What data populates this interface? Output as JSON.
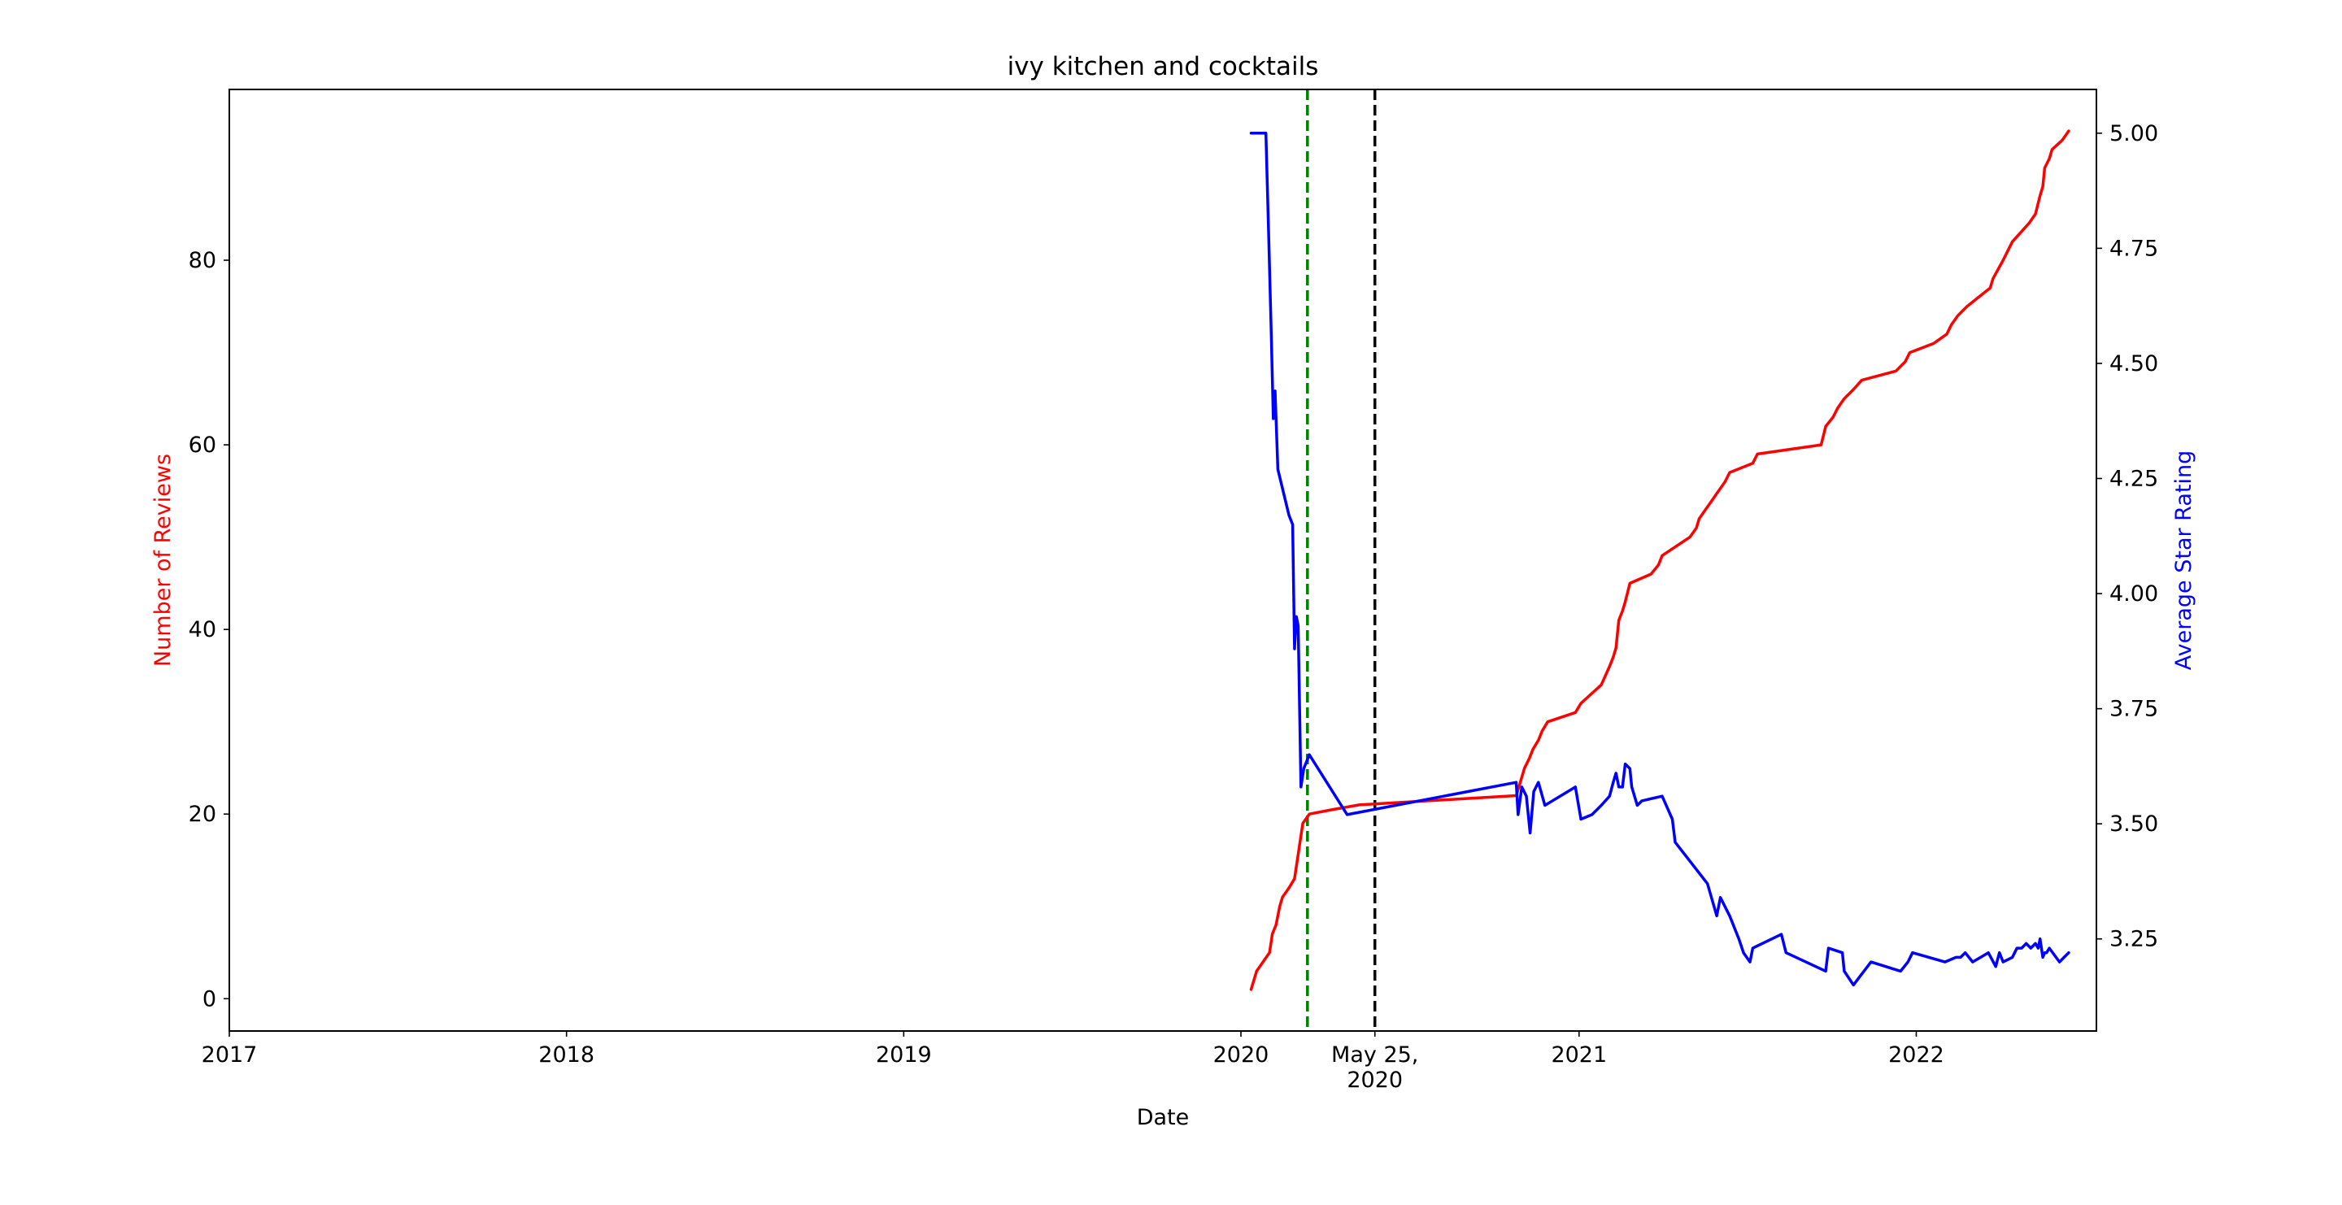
{
  "chart_data": {
    "type": "line",
    "title": "ivy kitchen and cocktails",
    "xlabel": "Date",
    "ylabel_left": "Number of Reviews",
    "ylabel_right": "Average Star Rating",
    "xlim": [
      "2017-01-01",
      "2022-07-15"
    ],
    "ylim_left": [
      -3.5,
      98.5
    ],
    "ylim_right": [
      3.05,
      5.095
    ],
    "x_ticks": [
      {
        "date": "2017-01-01",
        "label": "2017"
      },
      {
        "date": "2018-01-01",
        "label": "2018"
      },
      {
        "date": "2019-01-01",
        "label": "2019"
      },
      {
        "date": "2020-01-01",
        "label": "2020"
      },
      {
        "date": "2020-05-25",
        "label": "May 25,\n2020"
      },
      {
        "date": "2021-01-01",
        "label": "2021"
      },
      {
        "date": "2022-01-01",
        "label": "2022"
      }
    ],
    "y_ticks_left": [
      0,
      20,
      40,
      60,
      80
    ],
    "y_ticks_right": [
      "3.25",
      "3.50",
      "3.75",
      "4.00",
      "4.25",
      "4.50",
      "4.75",
      "5.00"
    ],
    "vlines": [
      {
        "date": "2020-03-13",
        "color": "#008000",
        "style": "dashed"
      },
      {
        "date": "2020-05-25",
        "color": "#000000",
        "style": "dashed"
      }
    ],
    "series": [
      {
        "axis": "left",
        "color": "#ff0000",
        "points": [
          [
            "2020-01-12",
            1
          ],
          [
            "2020-01-15",
            2
          ],
          [
            "2020-01-18",
            3
          ],
          [
            "2020-01-25",
            4
          ],
          [
            "2020-02-01",
            5
          ],
          [
            "2020-02-04",
            7
          ],
          [
            "2020-02-08",
            8
          ],
          [
            "2020-02-12",
            10
          ],
          [
            "2020-02-15",
            11
          ],
          [
            "2020-02-22",
            12
          ],
          [
            "2020-02-28",
            13
          ],
          [
            "2020-03-02",
            15
          ],
          [
            "2020-03-05",
            17
          ],
          [
            "2020-03-08",
            19
          ],
          [
            "2020-03-15",
            20
          ],
          [
            "2020-04-10",
            20.5
          ],
          [
            "2020-05-08",
            21
          ],
          [
            "2020-10-25",
            22
          ],
          [
            "2020-10-28",
            23
          ],
          [
            "2020-11-03",
            25
          ],
          [
            "2020-11-08",
            26
          ],
          [
            "2020-11-12",
            27
          ],
          [
            "2020-11-18",
            28
          ],
          [
            "2020-11-22",
            29
          ],
          [
            "2020-11-28",
            30
          ],
          [
            "2020-12-28",
            31
          ],
          [
            "2021-01-03",
            32
          ],
          [
            "2021-01-25",
            34
          ],
          [
            "2021-02-03",
            36
          ],
          [
            "2021-02-07",
            37
          ],
          [
            "2021-02-10",
            38
          ],
          [
            "2021-02-13",
            41
          ],
          [
            "2021-02-17",
            42
          ],
          [
            "2021-02-20",
            43
          ],
          [
            "2021-02-25",
            45
          ],
          [
            "2021-03-20",
            46
          ],
          [
            "2021-03-28",
            47
          ],
          [
            "2021-04-01",
            48
          ],
          [
            "2021-05-01",
            50
          ],
          [
            "2021-05-08",
            51
          ],
          [
            "2021-05-11",
            52
          ],
          [
            "2021-05-18",
            53
          ],
          [
            "2021-05-25",
            54
          ],
          [
            "2021-06-01",
            55
          ],
          [
            "2021-06-08",
            56
          ],
          [
            "2021-06-13",
            57
          ],
          [
            "2021-07-08",
            58
          ],
          [
            "2021-07-13",
            59
          ],
          [
            "2021-09-20",
            60
          ],
          [
            "2021-09-25",
            62
          ],
          [
            "2021-10-03",
            63
          ],
          [
            "2021-10-08",
            64
          ],
          [
            "2021-10-15",
            65
          ],
          [
            "2021-10-25",
            66
          ],
          [
            "2021-11-03",
            67
          ],
          [
            "2021-12-10",
            68
          ],
          [
            "2021-12-20",
            69
          ],
          [
            "2021-12-25",
            70
          ],
          [
            "2022-01-20",
            71
          ],
          [
            "2022-02-03",
            72
          ],
          [
            "2022-02-08",
            73
          ],
          [
            "2022-02-15",
            74
          ],
          [
            "2022-02-25",
            75
          ],
          [
            "2022-03-22",
            77
          ],
          [
            "2022-03-25",
            78
          ],
          [
            "2022-04-05",
            80
          ],
          [
            "2022-04-10",
            81
          ],
          [
            "2022-04-15",
            82
          ],
          [
            "2022-05-03",
            84
          ],
          [
            "2022-05-10",
            85
          ],
          [
            "2022-05-15",
            87
          ],
          [
            "2022-05-18",
            88
          ],
          [
            "2022-05-20",
            90
          ],
          [
            "2022-05-25",
            91
          ],
          [
            "2022-05-28",
            92
          ],
          [
            "2022-06-08",
            93
          ],
          [
            "2022-06-15",
            94
          ]
        ]
      },
      {
        "axis": "right",
        "color": "#0000ff",
        "points": [
          [
            "2020-01-12",
            5.0
          ],
          [
            "2020-01-28",
            5.0
          ],
          [
            "2020-01-31",
            4.78
          ],
          [
            "2020-02-03",
            4.55
          ],
          [
            "2020-02-05",
            4.38
          ],
          [
            "2020-02-07",
            4.44
          ],
          [
            "2020-02-10",
            4.27
          ],
          [
            "2020-02-22",
            4.17
          ],
          [
            "2020-02-26",
            4.15
          ],
          [
            "2020-02-28",
            3.88
          ],
          [
            "2020-03-01",
            3.95
          ],
          [
            "2020-03-03",
            3.93
          ],
          [
            "2020-03-06",
            3.58
          ],
          [
            "2020-03-09",
            3.62
          ],
          [
            "2020-03-15",
            3.65
          ],
          [
            "2020-04-25",
            3.52
          ],
          [
            "2020-10-25",
            3.59
          ],
          [
            "2020-10-27",
            3.52
          ],
          [
            "2020-10-31",
            3.58
          ],
          [
            "2020-11-05",
            3.56
          ],
          [
            "2020-11-09",
            3.48
          ],
          [
            "2020-11-13",
            3.57
          ],
          [
            "2020-11-18",
            3.59
          ],
          [
            "2020-11-25",
            3.54
          ],
          [
            "2020-12-28",
            3.58
          ],
          [
            "2021-01-03",
            3.51
          ],
          [
            "2021-01-15",
            3.52
          ],
          [
            "2021-01-25",
            3.54
          ],
          [
            "2021-02-03",
            3.56
          ],
          [
            "2021-02-07",
            3.59
          ],
          [
            "2021-02-10",
            3.61
          ],
          [
            "2021-02-13",
            3.58
          ],
          [
            "2021-02-17",
            3.58
          ],
          [
            "2021-02-20",
            3.63
          ],
          [
            "2021-02-25",
            3.62
          ],
          [
            "2021-02-27",
            3.58
          ],
          [
            "2021-03-05",
            3.54
          ],
          [
            "2021-03-10",
            3.55
          ],
          [
            "2021-04-01",
            3.56
          ],
          [
            "2021-04-12",
            3.51
          ],
          [
            "2021-04-15",
            3.46
          ],
          [
            "2021-05-20",
            3.37
          ],
          [
            "2021-05-30",
            3.3
          ],
          [
            "2021-06-03",
            3.34
          ],
          [
            "2021-06-13",
            3.3
          ],
          [
            "2021-06-23",
            3.25
          ],
          [
            "2021-06-28",
            3.22
          ],
          [
            "2021-07-05",
            3.2
          ],
          [
            "2021-07-08",
            3.23
          ],
          [
            "2021-08-08",
            3.26
          ],
          [
            "2021-08-13",
            3.22
          ],
          [
            "2021-09-25",
            3.18
          ],
          [
            "2021-09-28",
            3.23
          ],
          [
            "2021-10-13",
            3.22
          ],
          [
            "2021-10-15",
            3.18
          ],
          [
            "2021-10-25",
            3.15
          ],
          [
            "2021-11-13",
            3.2
          ],
          [
            "2021-12-15",
            3.18
          ],
          [
            "2021-12-23",
            3.2
          ],
          [
            "2021-12-28",
            3.22
          ],
          [
            "2022-02-01",
            3.2
          ],
          [
            "2022-02-13",
            3.21
          ],
          [
            "2022-02-18",
            3.21
          ],
          [
            "2022-02-23",
            3.22
          ],
          [
            "2022-03-03",
            3.2
          ],
          [
            "2022-03-20",
            3.22
          ],
          [
            "2022-03-28",
            3.19
          ],
          [
            "2022-04-01",
            3.22
          ],
          [
            "2022-04-05",
            3.2
          ],
          [
            "2022-04-15",
            3.21
          ],
          [
            "2022-04-20",
            3.23
          ],
          [
            "2022-04-25",
            3.23
          ],
          [
            "2022-04-30",
            3.24
          ],
          [
            "2022-05-05",
            3.23
          ],
          [
            "2022-05-10",
            3.24
          ],
          [
            "2022-05-13",
            3.23
          ],
          [
            "2022-05-15",
            3.25
          ],
          [
            "2022-05-18",
            3.21
          ],
          [
            "2022-05-20",
            3.22
          ],
          [
            "2022-05-22",
            3.22
          ],
          [
            "2022-05-25",
            3.23
          ],
          [
            "2022-06-05",
            3.2
          ],
          [
            "2022-06-10",
            3.21
          ],
          [
            "2022-06-15",
            3.22
          ]
        ]
      }
    ]
  }
}
